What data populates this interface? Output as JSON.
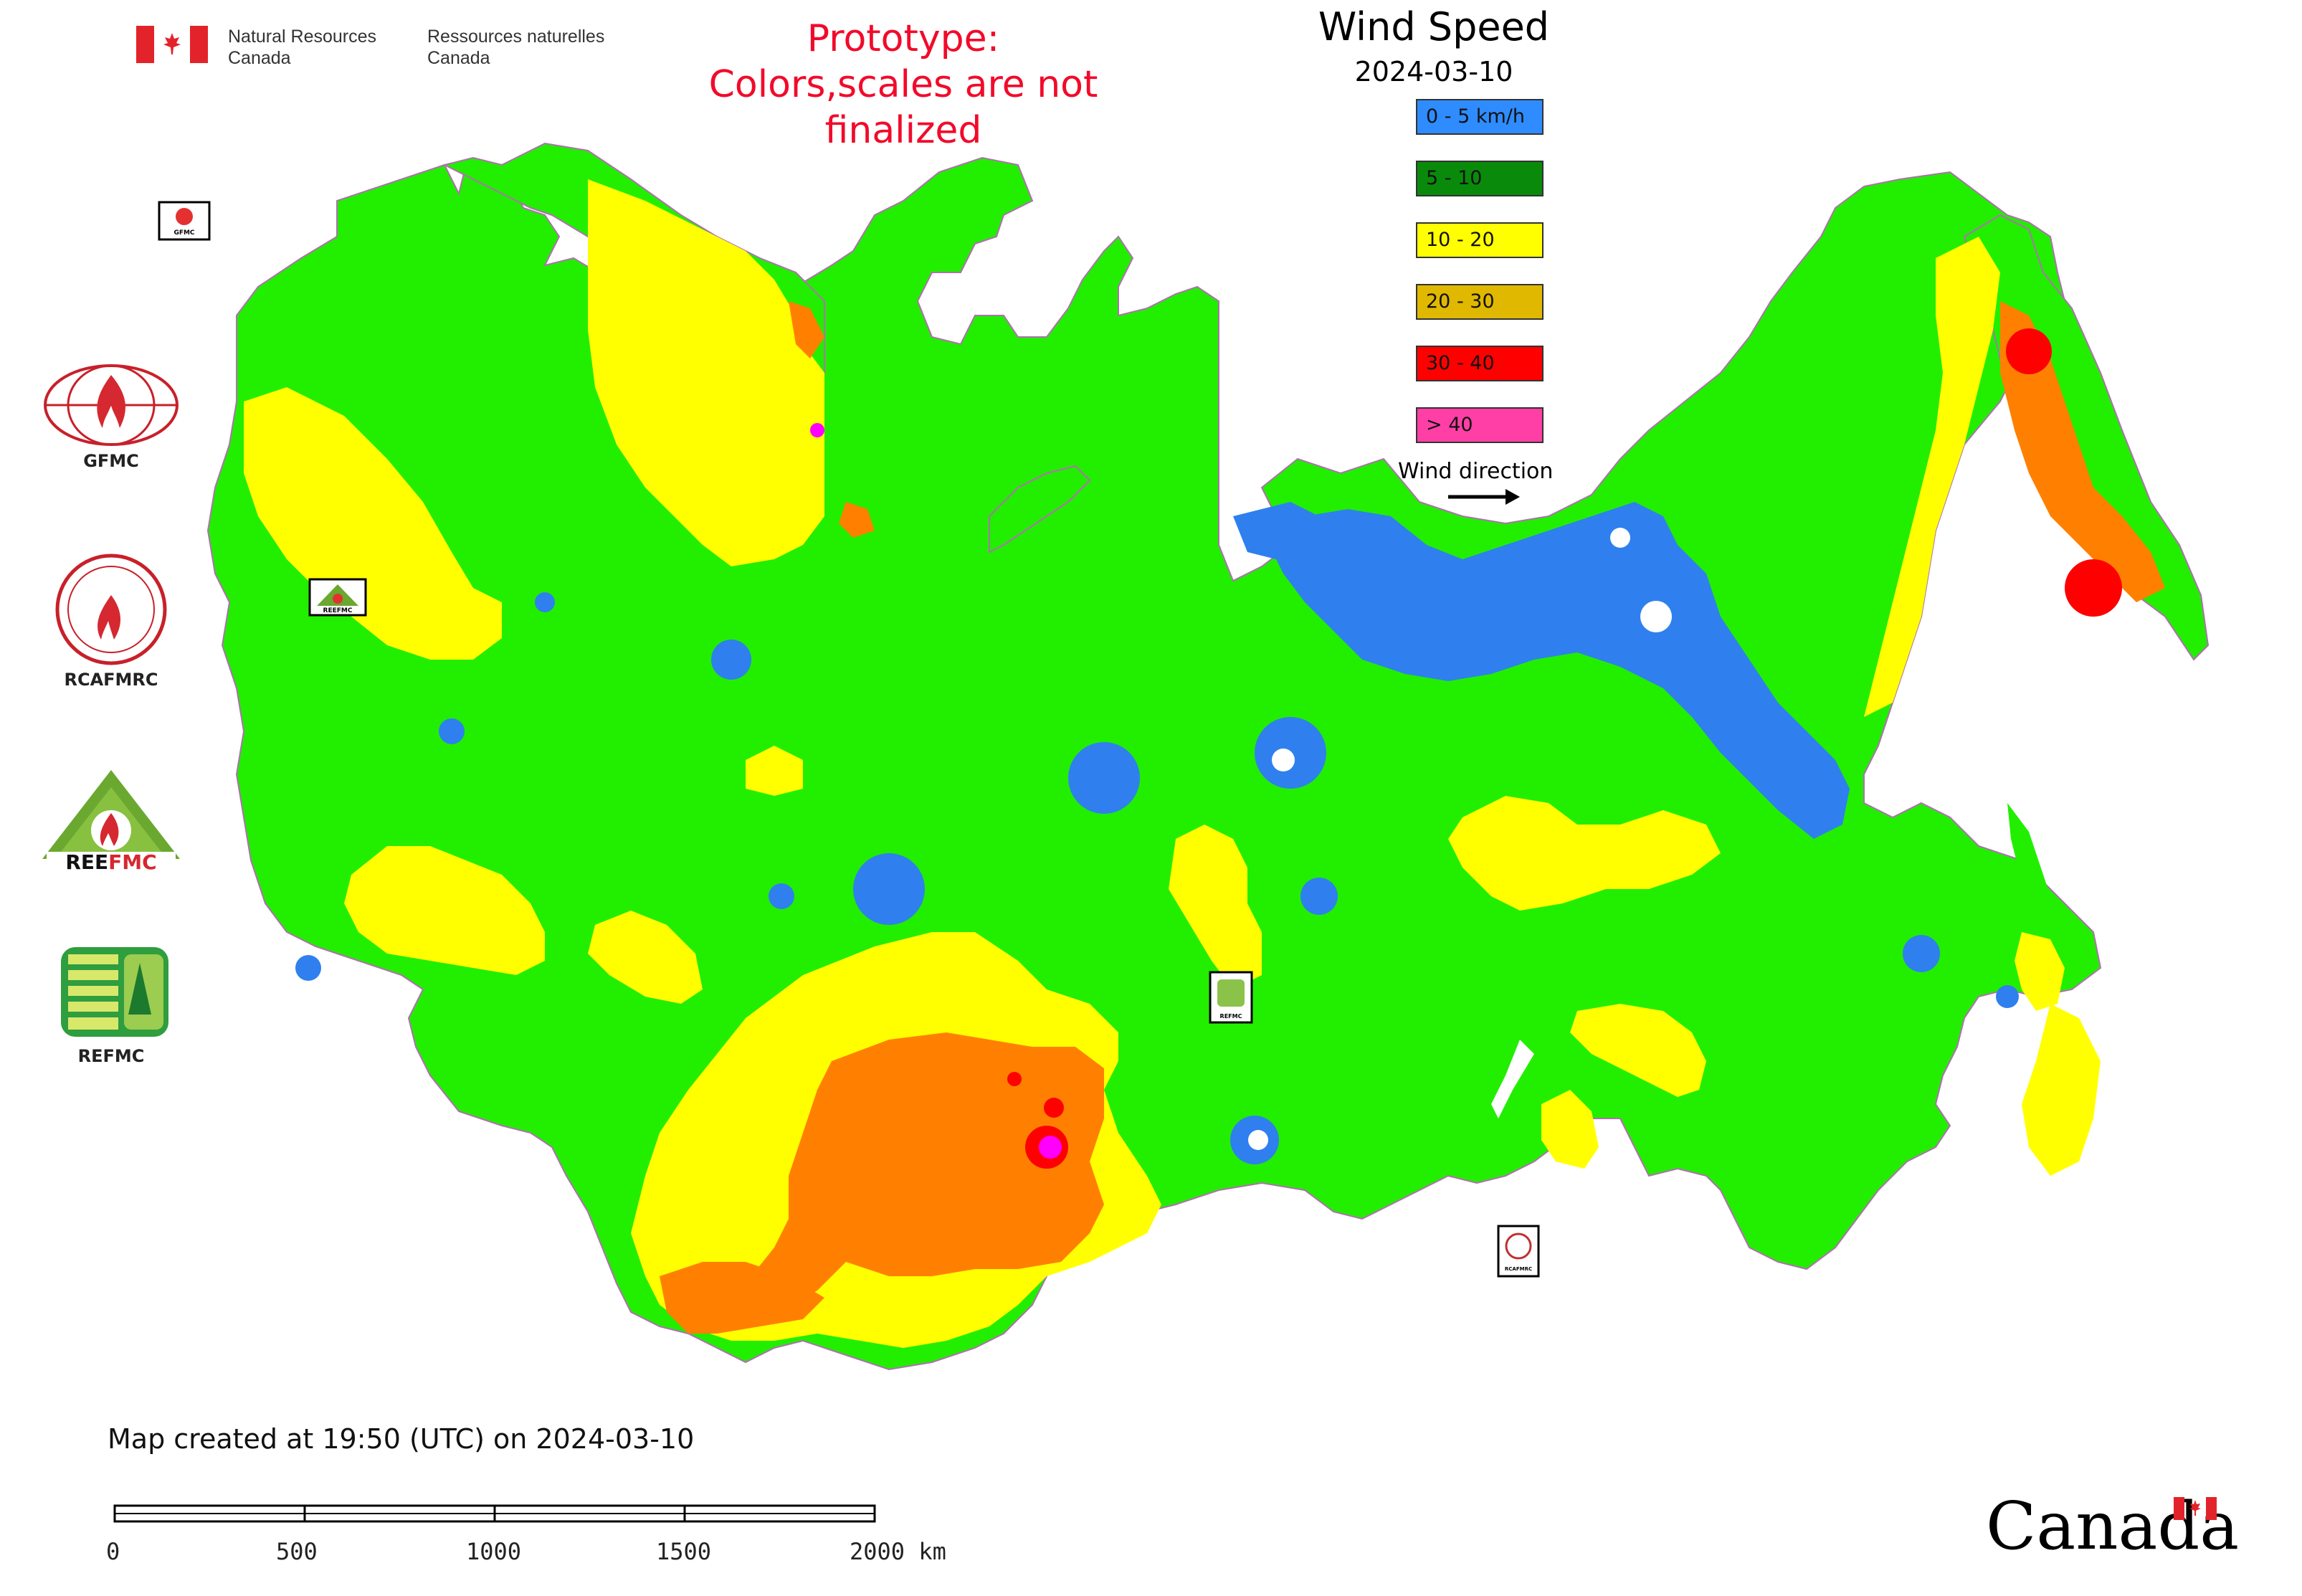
{
  "header": {
    "org_en_line1": "Natural Resources",
    "org_en_line2": "Canada",
    "org_fr_line1": "Ressources naturelles",
    "org_fr_line2": "Canada",
    "prototype_line1": "Prototype:",
    "prototype_line2": "Colors,scales are not finalized",
    "title": "Wind Speed",
    "date": "2024-03-10"
  },
  "legend": {
    "items": [
      {
        "label": "0 - 5 km/h",
        "color": "#2f8cff"
      },
      {
        "label": "5 - 10",
        "color": "#0a8a0a"
      },
      {
        "label": "10 - 20",
        "color": "#ffff00"
      },
      {
        "label": "20 - 30",
        "color": "#e0b800"
      },
      {
        "label": "30 - 40",
        "color": "#ff0000"
      },
      {
        "label": "> 40",
        "color": "#ff3fa6"
      }
    ],
    "wind_direction_label": "Wind direction"
  },
  "logos": [
    {
      "label": "GFMC"
    },
    {
      "label": "RCAFMRC"
    },
    {
      "label": "REEFMC"
    },
    {
      "label": "REFMC"
    }
  ],
  "map_badges": [
    "GFMC",
    "REEFMC",
    "REFMC",
    "RCAFMRC"
  ],
  "map_colors": {
    "land_5_10": "#22ee00",
    "yellow": "#ffff00",
    "orange": "#ff8000",
    "blue": "#2f80ee",
    "red": "#ff0000",
    "magenta": "#ff00ff",
    "border": "#b070b0"
  },
  "footer": {
    "created": "Map created at 19:50 (UTC) on 2024-03-10",
    "scale_labels": [
      "0",
      "500",
      "1000",
      "1500",
      "2000 km"
    ],
    "wordmark": "Canada"
  }
}
